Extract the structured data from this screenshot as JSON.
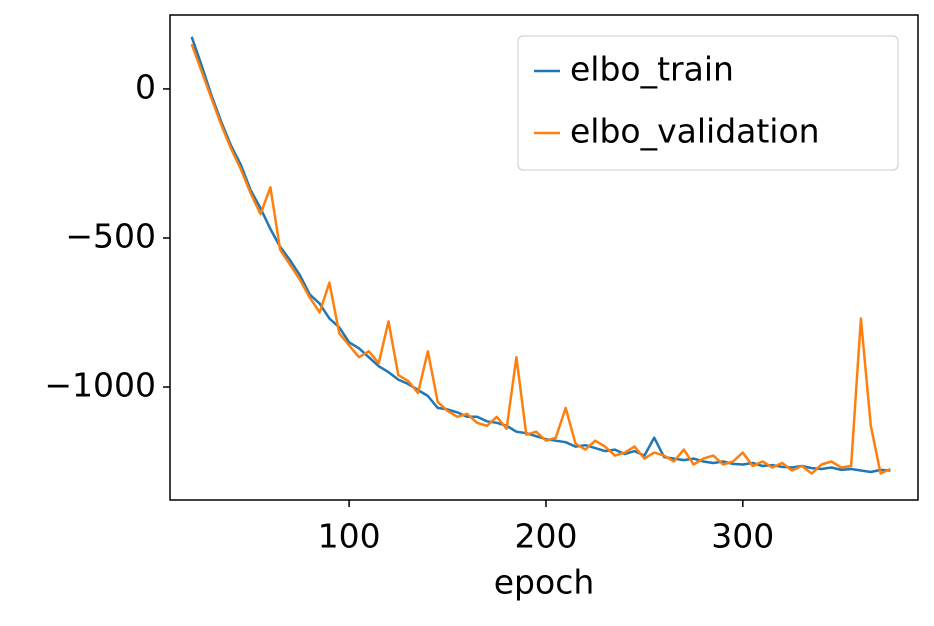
{
  "chart_data": {
    "type": "line",
    "x_label": "epoch",
    "x": [
      20,
      25,
      30,
      35,
      40,
      45,
      50,
      55,
      60,
      65,
      70,
      75,
      80,
      85,
      90,
      95,
      100,
      105,
      110,
      115,
      120,
      125,
      130,
      135,
      140,
      145,
      150,
      155,
      160,
      165,
      170,
      175,
      180,
      185,
      190,
      195,
      200,
      205,
      210,
      215,
      220,
      225,
      230,
      235,
      240,
      245,
      250,
      255,
      260,
      265,
      270,
      275,
      280,
      285,
      290,
      295,
      300,
      305,
      310,
      315,
      320,
      325,
      330,
      335,
      340,
      345,
      350,
      355,
      360,
      365,
      370,
      375
    ],
    "series": [
      {
        "name": "elbo_train",
        "color": "#1f77b4",
        "values": [
          175,
          80,
          -20,
          -110,
          -190,
          -255,
          -340,
          -400,
          -470,
          -530,
          -575,
          -625,
          -690,
          -720,
          -770,
          -800,
          -850,
          -870,
          -900,
          -930,
          -950,
          -975,
          -990,
          -1010,
          -1030,
          -1070,
          -1075,
          -1085,
          -1100,
          -1100,
          -1115,
          -1120,
          -1130,
          -1150,
          -1155,
          -1165,
          -1175,
          -1180,
          -1185,
          -1200,
          -1195,
          -1205,
          -1215,
          -1210,
          -1225,
          -1215,
          -1230,
          -1170,
          -1235,
          -1240,
          -1245,
          -1240,
          -1250,
          -1255,
          -1250,
          -1258,
          -1260,
          -1255,
          -1265,
          -1262,
          -1268,
          -1270,
          -1265,
          -1272,
          -1275,
          -1270,
          -1278,
          -1275,
          -1280,
          -1285,
          -1278,
          -1280
        ]
      },
      {
        "name": "elbo_validation",
        "color": "#ff7f0e",
        "values": [
          150,
          60,
          -30,
          -120,
          -200,
          -270,
          -350,
          -420,
          -330,
          -540,
          -590,
          -640,
          -700,
          -750,
          -650,
          -820,
          -860,
          -900,
          -880,
          -920,
          -780,
          -960,
          -980,
          -1020,
          -880,
          -1050,
          -1080,
          -1100,
          -1090,
          -1120,
          -1130,
          -1100,
          -1140,
          -900,
          -1160,
          -1150,
          -1180,
          -1170,
          -1070,
          -1190,
          -1210,
          -1180,
          -1200,
          -1230,
          -1220,
          -1200,
          -1240,
          -1220,
          -1230,
          -1250,
          -1210,
          -1260,
          -1240,
          -1230,
          -1260,
          -1250,
          -1220,
          -1265,
          -1250,
          -1270,
          -1255,
          -1280,
          -1265,
          -1290,
          -1260,
          -1250,
          -1270,
          -1265,
          -770,
          -1130,
          -1290,
          -1275
        ]
      }
    ],
    "xlim": [
      9,
      389
    ],
    "ylim": [
      -1379,
      248
    ],
    "xticks": [
      100,
      200,
      300
    ],
    "yticks": [
      {
        "value": -1000,
        "label": "−1000"
      },
      {
        "value": -500,
        "label": "−500"
      },
      0
    ],
    "grid": false,
    "legend": "upper right"
  }
}
